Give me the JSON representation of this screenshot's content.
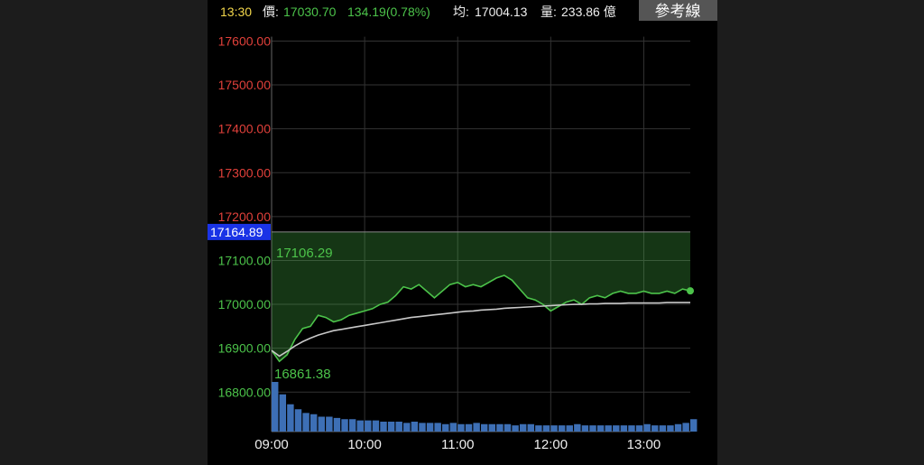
{
  "chart_data": {
    "type": "line",
    "header": {
      "time": "13:30",
      "price_label": "價:",
      "price": "17030.70",
      "change": "134.19(0.78%)",
      "avg_label": "均:",
      "avg": "17004.13",
      "volume_label": "量:",
      "volume": "233.86 億"
    },
    "button": "參考線",
    "reference": 17164.89,
    "annotations": [
      "17106.29",
      "16861.38"
    ],
    "xlim": [
      "09:00",
      "13:30"
    ],
    "xticks": [
      "09:00",
      "10:00",
      "11:00",
      "12:00",
      "13:00"
    ],
    "ylim": [
      16710,
      17610
    ],
    "yticks": [
      {
        "value": 16800,
        "label": "16800.00"
      },
      {
        "value": 16900,
        "label": "16900.00"
      },
      {
        "value": 17000,
        "label": "17000.00"
      },
      {
        "value": 17100,
        "label": "17100.00"
      },
      {
        "value": 17200,
        "label": "17200.00"
      },
      {
        "value": 17300,
        "label": "17300.00"
      },
      {
        "value": 17400,
        "label": "17400.00"
      },
      {
        "value": 17500,
        "label": "17500.00"
      },
      {
        "value": 17600,
        "label": "17600.00"
      }
    ],
    "grid": true,
    "up_color": "#e0403a",
    "down_color": "#4cc34a",
    "x": [
      "09:00",
      "09:05",
      "09:10",
      "09:15",
      "09:20",
      "09:25",
      "09:30",
      "09:35",
      "09:40",
      "09:45",
      "09:50",
      "09:55",
      "10:00",
      "10:05",
      "10:10",
      "10:15",
      "10:20",
      "10:25",
      "10:30",
      "10:35",
      "10:40",
      "10:45",
      "10:50",
      "10:55",
      "11:00",
      "11:05",
      "11:10",
      "11:15",
      "11:20",
      "11:25",
      "11:30",
      "11:35",
      "11:40",
      "11:45",
      "11:50",
      "11:55",
      "12:00",
      "12:05",
      "12:10",
      "12:15",
      "12:20",
      "12:25",
      "12:30",
      "12:35",
      "12:40",
      "12:45",
      "12:50",
      "12:55",
      "13:00",
      "13:05",
      "13:10",
      "13:15",
      "13:20",
      "13:25",
      "13:30"
    ],
    "series": [
      {
        "color": "#4cc34a",
        "values": [
          16895,
          16870,
          16885,
          16920,
          16945,
          16950,
          16975,
          16970,
          16960,
          16965,
          16975,
          16980,
          16985,
          16990,
          17000,
          17005,
          17020,
          17040,
          17035,
          17045,
          17030,
          17015,
          17030,
          17045,
          17050,
          17040,
          17045,
          17040,
          17050,
          17060,
          17066,
          17055,
          17035,
          17015,
          17010,
          17000,
          16985,
          16995,
          17005,
          17010,
          17000,
          17015,
          17020,
          17015,
          17025,
          17030,
          17025,
          17025,
          17030,
          17025,
          17025,
          17030,
          17025,
          17035,
          17030.7
        ]
      },
      {
        "color": "#c8c8c8",
        "values": [
          16895,
          16882,
          16893,
          16905,
          16915,
          16923,
          16930,
          16935,
          16940,
          16943,
          16946,
          16949,
          16952,
          16955,
          16958,
          16961,
          16964,
          16967,
          16970,
          16972,
          16974,
          16976,
          16978,
          16980,
          16982,
          16984,
          16985,
          16987,
          16988,
          16989,
          16991,
          16992,
          16993,
          16994,
          16995,
          16996,
          16997,
          16998,
          16999,
          17000,
          17000,
          17001,
          17001,
          17002,
          17002,
          17002,
          17003,
          17003,
          17003,
          17003,
          17003,
          17004,
          17004,
          17004,
          17004.13
        ]
      }
    ],
    "volume": {
      "color": "#3d6fb5",
      "values": [
        40,
        30,
        22,
        18,
        15,
        14,
        12,
        12,
        11,
        10,
        10,
        9,
        9,
        9,
        8,
        8,
        8,
        7,
        8,
        7,
        7,
        7,
        6,
        7,
        6,
        6,
        7,
        6,
        6,
        6,
        6,
        5,
        6,
        6,
        5,
        5,
        5,
        5,
        5,
        6,
        5,
        5,
        5,
        5,
        5,
        5,
        5,
        5,
        6,
        5,
        5,
        5,
        6,
        7,
        10
      ]
    }
  }
}
